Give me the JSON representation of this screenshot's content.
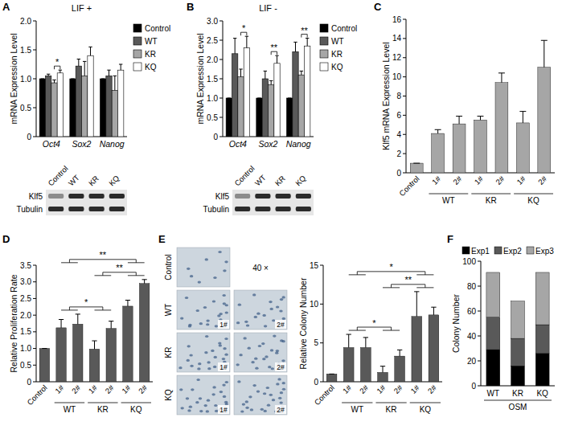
{
  "chart_data": [
    {
      "type": "bar",
      "panel": "A",
      "title": "LIF +",
      "y_label": "mRNA Expression Level",
      "categories": [
        "Oct4",
        "Sox2",
        "Nanog"
      ],
      "series": [
        {
          "name": "Control",
          "color": "#000000",
          "values": [
            1,
            1,
            1
          ],
          "errors": [
            0,
            0,
            0
          ]
        },
        {
          "name": "WT",
          "color": "#595959",
          "values": [
            1.05,
            1.22,
            1.05
          ],
          "errors": [
            0.03,
            0.12,
            0.1
          ]
        },
        {
          "name": "KR",
          "color": "#a6a6a6",
          "values": [
            0.93,
            1.05,
            0.8
          ],
          "errors": [
            0.05,
            0.25,
            0.25
          ]
        },
        {
          "name": "KQ",
          "color": "#ffffff",
          "values": [
            1.1,
            1.4,
            1.15
          ],
          "errors": [
            0.05,
            0.15,
            0.1
          ]
        }
      ],
      "ylim": [
        0,
        2
      ],
      "yticks": [
        0,
        0.5,
        {
          "value": 1,
          "label": "1.0"
        },
        1.5,
        {
          "value": 2,
          "label": "2.0"
        }
      ],
      "legend": "right",
      "annotations": [
        {
          "text": "*",
          "category": 0,
          "left": 2,
          "right": 3
        }
      ],
      "blot_lanes": [
        "Control",
        "WT",
        "KR",
        "KQ"
      ],
      "blot_rows": [
        "Klf5",
        "Tubulin"
      ]
    },
    {
      "type": "bar",
      "panel": "B",
      "title": "LIF -",
      "y_label": "mRNA Expression Level",
      "categories": [
        "Oct4",
        "Sox2",
        "Nanog"
      ],
      "series": [
        {
          "name": "Control",
          "color": "#000000",
          "values": [
            1,
            1,
            1
          ],
          "errors": [
            0,
            0,
            0
          ]
        },
        {
          "name": "WT",
          "color": "#595959",
          "values": [
            2.15,
            1.5,
            2.2
          ],
          "errors": [
            0.4,
            0.2,
            0.25
          ]
        },
        {
          "name": "KR",
          "color": "#a6a6a6",
          "values": [
            1.55,
            1.35,
            1.6
          ],
          "errors": [
            0.2,
            0.1,
            0.1
          ]
        },
        {
          "name": "KQ",
          "color": "#ffffff",
          "values": [
            2.3,
            1.9,
            2.35
          ],
          "errors": [
            0.3,
            0.2,
            0.2
          ]
        }
      ],
      "ylim": [
        0,
        3
      ],
      "yticks": [
        0,
        0.5,
        {
          "value": 1,
          "label": "1.0"
        },
        1.5,
        {
          "value": 2,
          "label": "2.0"
        },
        2.5,
        {
          "value": 3,
          "label": "3.0"
        }
      ],
      "legend": "right",
      "annotations": [
        {
          "text": "*",
          "category": 0,
          "left": 2,
          "right": 3
        },
        {
          "text": "**",
          "category": 1,
          "left": 2,
          "right": 3
        },
        {
          "text": "**",
          "category": 2,
          "left": 2,
          "right": 3
        }
      ],
      "blot_lanes": [
        "Control",
        "WT",
        "KR",
        "KQ"
      ],
      "blot_rows": [
        "Klf5",
        "Tubulin"
      ]
    },
    {
      "type": "bar",
      "panel": "C",
      "y_label": "Klf5 mRNA Expression Level",
      "categories": [
        "Control",
        "1#",
        "2#",
        "1#",
        "2#",
        "1#",
        "2#"
      ],
      "groups": [
        {
          "label": "WT",
          "from": 1,
          "to": 2
        },
        {
          "label": "KR",
          "from": 3,
          "to": 4
        },
        {
          "label": "KQ",
          "from": 5,
          "to": 6
        }
      ],
      "values": [
        1,
        4.1,
        5.1,
        5.5,
        9.4,
        5.2,
        11
      ],
      "errors": [
        0,
        0.4,
        0.8,
        0.4,
        1.0,
        1.2,
        2.8
      ],
      "color": "#a6a6a6",
      "ylim": [
        0,
        16
      ],
      "yticks": [
        0,
        2,
        4,
        6,
        8,
        10,
        12,
        14,
        16
      ]
    },
    {
      "type": "bar",
      "panel": "D",
      "y_label": "Relative Proliferation Rate",
      "categories": [
        "Control",
        "1#",
        "2#",
        "1#",
        "2#",
        "1#",
        "2#"
      ],
      "groups": [
        {
          "label": "WT",
          "from": 1,
          "to": 2
        },
        {
          "label": "KR",
          "from": 3,
          "to": 4
        },
        {
          "label": "KQ",
          "from": 5,
          "to": 6
        }
      ],
      "values": [
        1,
        1.62,
        1.73,
        0.98,
        1.6,
        2.27,
        2.95
      ],
      "errors": [
        0,
        0.25,
        0.3,
        0.25,
        0.22,
        0.18,
        0.12
      ],
      "color": "#595959",
      "ylim": [
        0,
        3.5
      ],
      "yticks": [
        0,
        0.5,
        {
          "value": 1,
          "label": "1.0"
        },
        1.5,
        {
          "value": 2,
          "label": "2.0"
        },
        2.5,
        {
          "value": 3,
          "label": "3.0"
        },
        3.5
      ],
      "annotations": [
        {
          "text": "*",
          "left": [
            1,
            2
          ],
          "right": [
            3,
            4
          ]
        },
        {
          "text": "**",
          "left": [
            3,
            4
          ],
          "right": [
            5,
            6
          ]
        },
        {
          "text": "**",
          "left": [
            1,
            2
          ],
          "right": [
            5,
            6
          ]
        }
      ]
    },
    {
      "type": "bar",
      "panel": "E",
      "y_label": "Relative Colony Number",
      "categories": [
        "Control",
        "1#",
        "2#",
        "1#",
        "2#",
        "1#",
        "2#"
      ],
      "groups": [
        {
          "label": "WT",
          "from": 1,
          "to": 2
        },
        {
          "label": "KR",
          "from": 3,
          "to": 4
        },
        {
          "label": "KQ",
          "from": 5,
          "to": 6
        }
      ],
      "values": [
        1,
        4.4,
        4.4,
        1.2,
        3.3,
        8.4,
        8.6
      ],
      "errors": [
        0,
        1.7,
        1.3,
        0.8,
        0.8,
        3.2,
        1.0
      ],
      "color": "#595959",
      "ylim": [
        0,
        15
      ],
      "yticks": [
        0,
        5,
        10,
        15
      ],
      "annotations": [
        {
          "text": "*",
          "left": [
            1,
            2
          ],
          "right": [
            3,
            4
          ]
        },
        {
          "text": "**",
          "left": [
            3,
            4
          ],
          "right": [
            5,
            6
          ]
        },
        {
          "text": "*",
          "left": [
            1,
            2
          ],
          "right": [
            5,
            6
          ]
        }
      ],
      "images": {
        "rows": [
          "Control",
          "WT",
          "KR",
          "KQ"
        ],
        "columns": [
          "1#",
          "2#"
        ],
        "magnification": "40 ×"
      }
    },
    {
      "type": "bar",
      "panel": "F",
      "stacked": true,
      "y_label": "Colony Number",
      "x_label": "OSM",
      "categories": [
        "WT",
        "KR",
        "KQ"
      ],
      "series": [
        {
          "name": "Exp1",
          "color": "#000000",
          "values": [
            29,
            16,
            26
          ]
        },
        {
          "name": "Exp2",
          "color": "#595959",
          "values": [
            26,
            22,
            23
          ]
        },
        {
          "name": "Exp3",
          "color": "#a6a6a6",
          "values": [
            36,
            30,
            42
          ]
        }
      ],
      "ylim": [
        0,
        100
      ],
      "yticks": [
        0,
        20,
        40,
        60,
        80,
        100
      ],
      "legend": "top"
    }
  ]
}
